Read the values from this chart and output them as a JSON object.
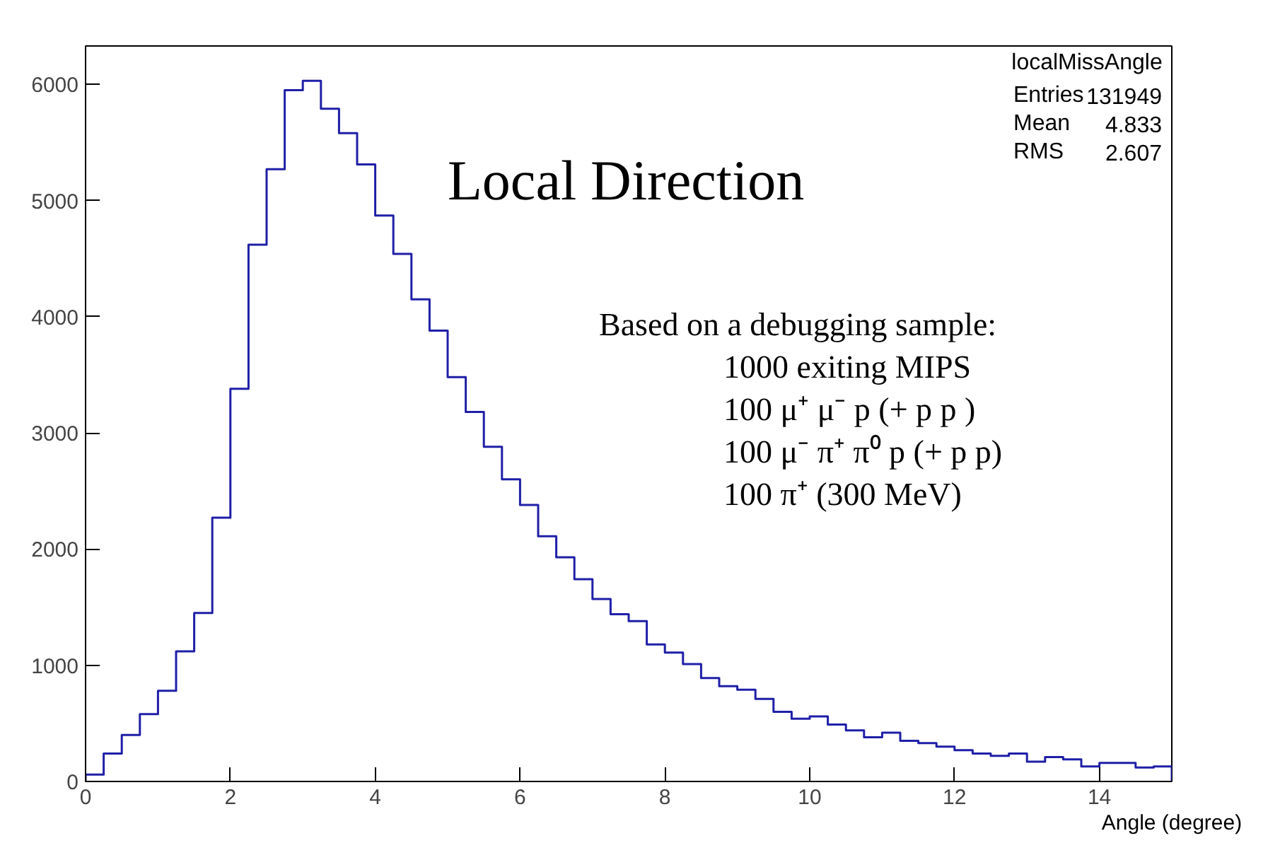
{
  "chart_data": {
    "type": "histogram",
    "title": "Local Direction",
    "xlabel": "Angle (degree)",
    "bins": [
      0,
      0.25,
      0.5,
      0.75,
      1,
      1.25,
      1.5,
      1.75,
      2,
      2.25,
      2.5,
      2.75,
      3,
      3.25,
      3.5,
      3.75,
      4,
      4.25,
      4.5,
      4.75,
      5,
      5.25,
      5.5,
      5.75,
      6,
      6.25,
      6.5,
      6.75,
      7,
      7.25,
      7.5,
      7.75,
      8,
      8.25,
      8.5,
      8.75,
      9,
      9.25,
      9.5,
      9.75,
      10,
      10.25,
      10.5,
      10.75,
      11,
      11.25,
      11.5,
      11.75,
      12,
      12.25,
      12.5,
      12.75,
      13,
      13.25,
      13.5,
      13.75,
      14,
      14.25,
      14.5,
      14.75,
      15
    ],
    "values": [
      60,
      240,
      400,
      580,
      780,
      1120,
      1450,
      2270,
      3380,
      4620,
      5270,
      5950,
      6030,
      5790,
      5580,
      5310,
      4870,
      4540,
      4150,
      3880,
      3480,
      3180,
      2880,
      2600,
      2380,
      2110,
      1930,
      1740,
      1570,
      1440,
      1380,
      1180,
      1110,
      1010,
      890,
      820,
      790,
      710,
      600,
      540,
      560,
      490,
      440,
      380,
      420,
      350,
      330,
      300,
      270,
      240,
      220,
      240,
      170,
      210,
      190,
      130,
      160,
      160,
      120,
      130
    ],
    "color": "#1f1fa8",
    "xlim": [
      0,
      15
    ],
    "ylim": [
      0,
      6330
    ],
    "xticks": [
      0,
      2,
      4,
      6,
      8,
      10,
      12,
      14
    ],
    "yticks": [
      0,
      1000,
      2000,
      3000,
      4000,
      5000,
      6000
    ],
    "grid": false,
    "annotations": [
      "localMissAngle",
      "Entries",
      "131949",
      "Mean",
      "4.833",
      "RMS",
      "2.607",
      "Based on a debugging sample:",
      "1000 exiting MIPS",
      "100   μ⁺  μ⁻ p (+ p p )",
      "100   μ⁻ π⁺ π⁰ p (+ p p)",
      "100   π⁺ (300 MeV)"
    ]
  }
}
